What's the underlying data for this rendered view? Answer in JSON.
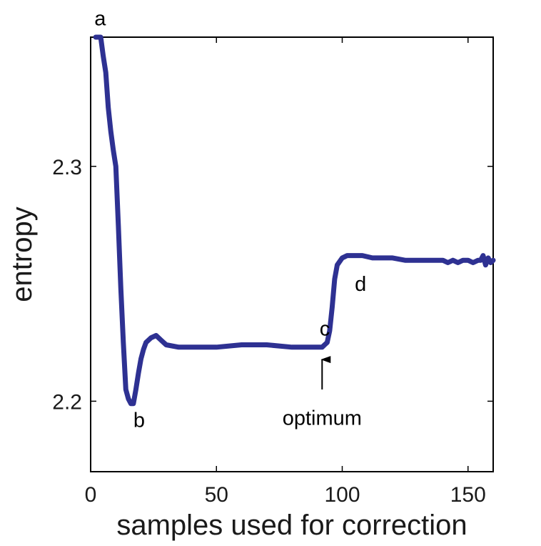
{
  "chart_data": {
    "type": "line",
    "title": "",
    "xlabel": "samples used for correction",
    "ylabel": "entropy",
    "xlim": [
      0,
      160
    ],
    "ylim": [
      2.17,
      2.355
    ],
    "x_ticks": [
      0,
      50,
      100,
      150
    ],
    "y_ticks": [
      2.2,
      2.3
    ],
    "x_tick_labels": [
      "0",
      "50",
      "100",
      "150"
    ],
    "y_tick_labels": [
      "2.2",
      "2.3"
    ],
    "grid": false,
    "color": "#2e3192",
    "series": [
      {
        "x": [
          2,
          4,
          5,
          6,
          7,
          8,
          9,
          10,
          11,
          12,
          13,
          14,
          15,
          16,
          17,
          18,
          19,
          20,
          21,
          22,
          24,
          26,
          28,
          30,
          35,
          40,
          50,
          60,
          70,
          80,
          85,
          88,
          90,
          91,
          92,
          93,
          94,
          95,
          96,
          97,
          98,
          100,
          102,
          105,
          108,
          112,
          116,
          120,
          125,
          130,
          135,
          140,
          142,
          144,
          146,
          148,
          150,
          152,
          154,
          155,
          156,
          157,
          158,
          159,
          160
        ],
        "y": [
          2.355,
          2.355,
          2.347,
          2.34,
          2.325,
          2.315,
          2.307,
          2.3,
          2.275,
          2.248,
          2.225,
          2.205,
          2.201,
          2.199,
          2.199,
          2.205,
          2.212,
          2.218,
          2.222,
          2.225,
          2.227,
          2.228,
          2.226,
          2.224,
          2.223,
          2.223,
          2.223,
          2.224,
          2.224,
          2.223,
          2.223,
          2.223,
          2.223,
          2.223,
          2.223,
          2.224,
          2.225,
          2.23,
          2.24,
          2.252,
          2.258,
          2.261,
          2.262,
          2.262,
          2.262,
          2.261,
          2.261,
          2.261,
          2.26,
          2.26,
          2.26,
          2.26,
          2.259,
          2.26,
          2.259,
          2.26,
          2.26,
          2.259,
          2.26,
          2.26,
          2.262,
          2.258,
          2.261,
          2.259,
          2.26
        ]
      }
    ],
    "annotations": [
      {
        "text": "a",
        "x": 1.5,
        "y": 2.36
      },
      {
        "text": "b",
        "x": 17,
        "y": 2.189
      },
      {
        "text": "c",
        "x": 91,
        "y": 2.228
      },
      {
        "text": "d",
        "x": 105,
        "y": 2.247
      },
      {
        "text": "optimum",
        "x": 92,
        "y": 2.19
      }
    ],
    "arrow": {
      "x": 92,
      "y_start": 2.205,
      "y_end": 2.222
    }
  }
}
